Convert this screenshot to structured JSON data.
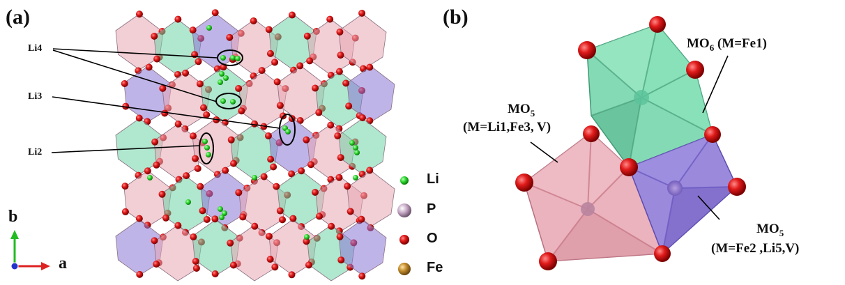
{
  "panels": {
    "a": "(a)",
    "b": "(b)"
  },
  "site_labels": [
    "Li4",
    "Li3",
    "Li2"
  ],
  "legend": [
    {
      "symbol": "Li",
      "color": "#22cc22"
    },
    {
      "symbol": "P",
      "color": "#c8a8c8"
    },
    {
      "symbol": "O",
      "color": "#dd1111"
    },
    {
      "symbol": "Fe",
      "color": "#b8862a"
    }
  ],
  "axes": {
    "b": "b",
    "a": "a"
  },
  "polyhedra": {
    "mo6": {
      "prefix": "MO",
      "sub": "6",
      "detail": " (M=Fe1)"
    },
    "mo5_top": {
      "prefix": "MO",
      "sub": "5",
      "detail": "(M=Li1,Fe3, V)"
    },
    "mo5_bottom": {
      "prefix": "MO",
      "sub": "5",
      "detail": "(M=Fe2 ,Li5,V)"
    }
  },
  "colors": {
    "green_poly": "#6fd3a8",
    "pink_poly": "#e8a6b2",
    "purple_poly": "#8a76d6",
    "oxygen": "#dd1111"
  }
}
